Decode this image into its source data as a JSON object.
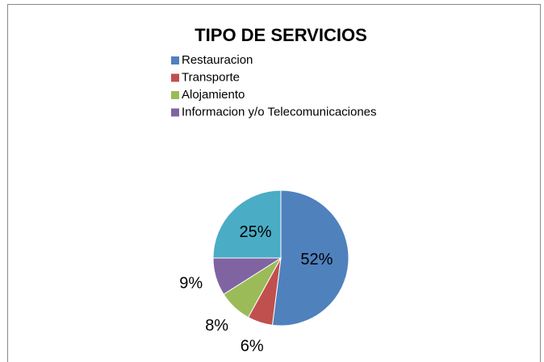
{
  "chart_data": {
    "type": "pie",
    "title": "TIPO DE SERVICIOS",
    "categories": [
      "Restauracion",
      "Transporte",
      "Alojamiento",
      "Informacion y/o Telecomunicaciones",
      null
    ],
    "values": [
      52,
      6,
      8,
      9,
      25
    ],
    "value_labels": [
      "52%",
      "6%",
      "8%",
      "9%",
      "25%"
    ],
    "colors": [
      "#4f81bd",
      "#c0504d",
      "#9bbb59",
      "#8064a2",
      "#4bacc6"
    ],
    "legend": "top"
  }
}
